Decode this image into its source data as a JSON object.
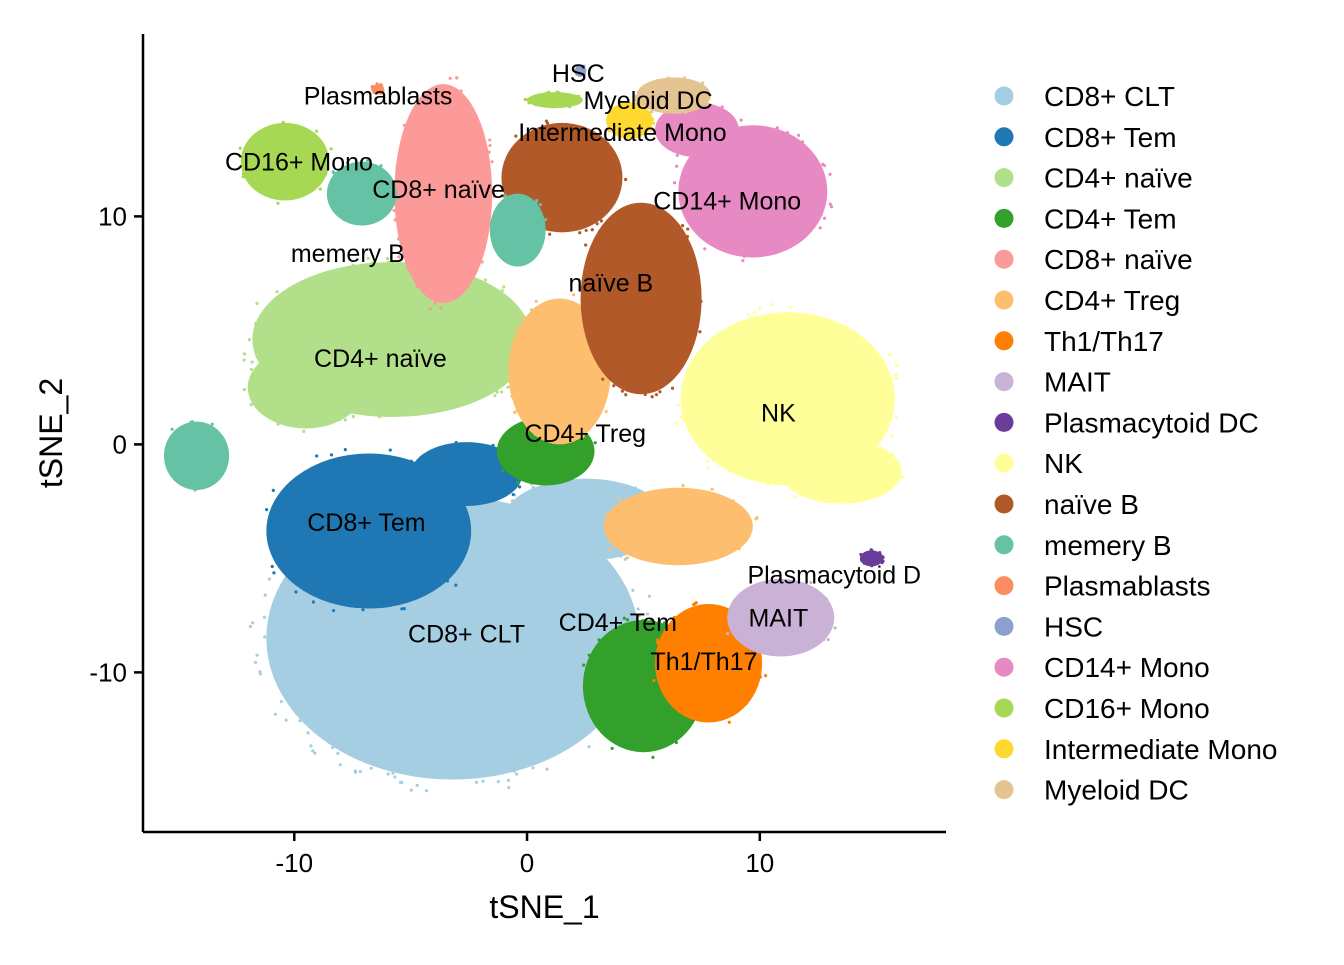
{
  "chart_data": {
    "type": "scatter",
    "xlabel": "tSNE_1",
    "ylabel": "tSNE_2",
    "xlim": [
      -16.5,
      18
    ],
    "ylim": [
      -17,
      18
    ],
    "x_ticks": [
      -10,
      0,
      10
    ],
    "x_tick_labels": [
      "-10",
      "0",
      "10"
    ],
    "y_ticks": [
      -10,
      0,
      10
    ],
    "y_tick_labels": [
      "-10",
      "0",
      "10"
    ],
    "grid": false,
    "legend_position": "right",
    "series": [
      {
        "name": "CD8+ CLT",
        "color": "#A6CEE3",
        "label": "CD8+ CLT",
        "label_pos": [
          -2.6,
          -8.3
        ],
        "blobs": [
          {
            "cx": -3.2,
            "cy": -8.5,
            "rx": 8.0,
            "ry": 6.2
          },
          {
            "cx": 2.5,
            "cy": -3.3,
            "rx": 3.5,
            "ry": 1.8
          }
        ]
      },
      {
        "name": "CD8+ Tem",
        "color": "#1F78B4",
        "label": "CD8+ Tem",
        "label_pos": [
          -6.9,
          -3.4
        ],
        "blobs": [
          {
            "cx": -6.8,
            "cy": -3.8,
            "rx": 4.4,
            "ry": 3.4
          },
          {
            "cx": -2.6,
            "cy": -1.3,
            "rx": 2.4,
            "ry": 1.4
          }
        ]
      },
      {
        "name": "CD4+ naïve",
        "color": "#B2DF8A",
        "label": "CD4+ naïve",
        "label_pos": [
          -6.3,
          3.8
        ],
        "blobs": [
          {
            "cx": -5.8,
            "cy": 4.6,
            "rx": 6.0,
            "ry": 3.4
          },
          {
            "cx": -9.5,
            "cy": 2.5,
            "rx": 2.5,
            "ry": 1.8
          }
        ]
      },
      {
        "name": "CD4+ Tem",
        "color": "#33A02C",
        "label": "CD4+ Tem",
        "label_pos": [
          3.9,
          -7.8
        ],
        "blobs": [
          {
            "cx": 5.0,
            "cy": -10.6,
            "rx": 2.6,
            "ry": 2.9
          },
          {
            "cx": 0.8,
            "cy": -0.3,
            "rx": 2.1,
            "ry": 1.5
          }
        ]
      },
      {
        "name": "CD8+ naïve",
        "color": "#FB9A99",
        "label": "CD8+ naïve",
        "label_pos": [
          -3.8,
          11.2
        ],
        "blobs": [
          {
            "cx": -3.6,
            "cy": 11.0,
            "rx": 2.1,
            "ry": 4.8
          }
        ]
      },
      {
        "name": "CD4+ Treg",
        "color": "#FDBF6F",
        "label": "CD4+ Treg",
        "label_pos": [
          2.5,
          0.5
        ],
        "blobs": [
          {
            "cx": 1.4,
            "cy": 3.2,
            "rx": 2.2,
            "ry": 3.2
          },
          {
            "cx": 6.5,
            "cy": -3.6,
            "rx": 3.2,
            "ry": 1.7
          }
        ]
      },
      {
        "name": "Th1/Th17",
        "color": "#FF7F00",
        "label": "Th1/Th17",
        "label_pos": [
          7.6,
          -9.5
        ],
        "blobs": [
          {
            "cx": 7.8,
            "cy": -9.6,
            "rx": 2.3,
            "ry": 2.6
          }
        ]
      },
      {
        "name": "MAIT",
        "color": "#CAB2D6",
        "label": "MAIT",
        "label_pos": [
          10.8,
          -7.6
        ],
        "blobs": [
          {
            "cx": 10.9,
            "cy": -7.6,
            "rx": 2.3,
            "ry": 1.7
          }
        ]
      },
      {
        "name": "Plasmacytoid DC",
        "color": "#6A3D9A",
        "label": "Plasmacytoid D",
        "label_pos": [
          13.2,
          -5.7
        ],
        "blobs": [
          {
            "cx": 14.8,
            "cy": -5.0,
            "rx": 0.5,
            "ry": 0.35
          }
        ]
      },
      {
        "name": "NK",
        "color": "#FFFF99",
        "label": "NK",
        "label_pos": [
          10.8,
          1.4
        ],
        "blobs": [
          {
            "cx": 11.2,
            "cy": 2.0,
            "rx": 4.6,
            "ry": 3.8
          },
          {
            "cx": 13.5,
            "cy": -1.2,
            "rx": 2.6,
            "ry": 1.4
          }
        ]
      },
      {
        "name": "naïve B",
        "color": "#B15928",
        "label": "naïve B",
        "label_pos": [
          3.6,
          7.1
        ],
        "blobs": [
          {
            "cx": 4.9,
            "cy": 6.4,
            "rx": 2.6,
            "ry": 4.2
          },
          {
            "cx": 1.5,
            "cy": 11.7,
            "rx": 2.6,
            "ry": 2.4
          }
        ]
      },
      {
        "name": "memery B",
        "color": "#66C2A5",
        "label": "memery B",
        "label_pos": [
          -7.7,
          8.4
        ],
        "blobs": [
          {
            "cx": -14.2,
            "cy": -0.5,
            "rx": 1.4,
            "ry": 1.5
          },
          {
            "cx": -7.1,
            "cy": 11.0,
            "rx": 1.5,
            "ry": 1.4
          },
          {
            "cx": -0.4,
            "cy": 9.4,
            "rx": 1.2,
            "ry": 1.6
          }
        ]
      },
      {
        "name": "Plasmablasts",
        "color": "#FC8D62",
        "label": "Plasmablasts",
        "label_pos": [
          -6.4,
          15.3
        ],
        "blobs": [
          {
            "cx": -6.4,
            "cy": 15.6,
            "rx": 0.25,
            "ry": 0.2
          }
        ]
      },
      {
        "name": "HSC",
        "color": "#8DA0CB",
        "label": "HSC",
        "label_pos": [
          2.2,
          16.3
        ],
        "blobs": [
          {
            "cx": 2.3,
            "cy": 16.4,
            "rx": 0.25,
            "ry": 0.2
          }
        ]
      },
      {
        "name": "CD14+ Mono",
        "color": "#E78AC3",
        "label": "CD14+ Mono",
        "label_pos": [
          8.6,
          10.7
        ],
        "blobs": [
          {
            "cx": 9.7,
            "cy": 11.1,
            "rx": 3.2,
            "ry": 2.9
          },
          {
            "cx": 7.3,
            "cy": 13.8,
            "rx": 1.8,
            "ry": 1.2
          }
        ]
      },
      {
        "name": "CD16+ Mono",
        "color": "#A6D854",
        "label": "CD16+ Mono",
        "label_pos": [
          -9.8,
          12.4
        ],
        "blobs": [
          {
            "cx": -10.4,
            "cy": 12.4,
            "rx": 1.9,
            "ry": 1.7
          },
          {
            "cx": 1.2,
            "cy": 15.1,
            "rx": 1.2,
            "ry": 0.35
          }
        ]
      },
      {
        "name": "Intermediate Mono",
        "color": "#FFD92F",
        "label": "Intermediate Mono",
        "label_pos": [
          4.1,
          13.7
        ],
        "blobs": [
          {
            "cx": 4.4,
            "cy": 14.2,
            "rx": 1.0,
            "ry": 0.8
          }
        ]
      },
      {
        "name": "Myeloid DC",
        "color": "#E5C494",
        "label": "Myeloid DC",
        "label_pos": [
          5.2,
          15.1
        ],
        "blobs": [
          {
            "cx": 6.3,
            "cy": 15.3,
            "rx": 1.6,
            "ry": 0.8
          }
        ]
      }
    ]
  }
}
